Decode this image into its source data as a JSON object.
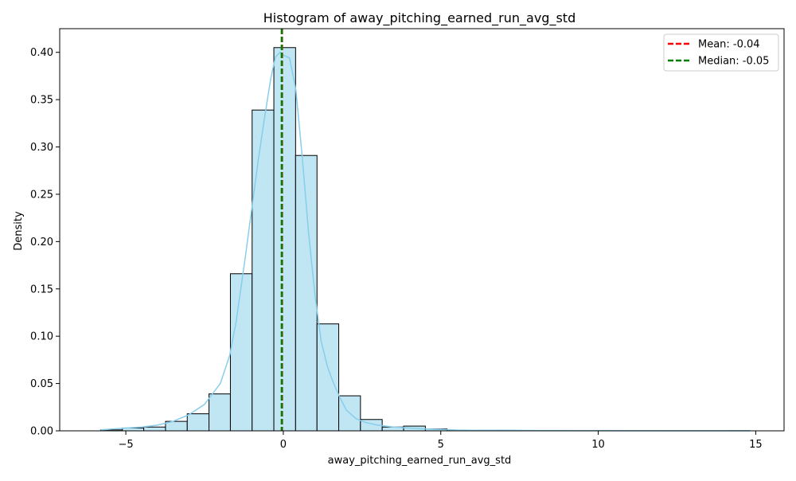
{
  "chart_data": {
    "type": "bar",
    "title": "Histogram of away_pitching_earned_run_avg_std",
    "xlabel": "away_pitching_earned_run_avg_std",
    "ylabel": "Density",
    "xlim": [
      -7.1,
      15.9
    ],
    "ylim": [
      0,
      0.425
    ],
    "x_ticks": [
      {
        "value": -5,
        "label": "−5"
      },
      {
        "value": 0,
        "label": "0"
      },
      {
        "value": 5,
        "label": "5"
      },
      {
        "value": 10,
        "label": "10"
      },
      {
        "value": 15,
        "label": "15"
      }
    ],
    "y_ticks": [
      {
        "value": 0.0,
        "label": "0.00"
      },
      {
        "value": 0.05,
        "label": "0.05"
      },
      {
        "value": 0.1,
        "label": "0.10"
      },
      {
        "value": 0.15,
        "label": "0.15"
      },
      {
        "value": 0.2,
        "label": "0.20"
      },
      {
        "value": 0.25,
        "label": "0.25"
      },
      {
        "value": 0.3,
        "label": "0.30"
      },
      {
        "value": 0.35,
        "label": "0.35"
      },
      {
        "value": 0.4,
        "label": "0.40"
      }
    ],
    "grid": false,
    "bin_edges": [
      -5.8,
      -5.11,
      -4.43,
      -3.74,
      -3.05,
      -2.36,
      -1.68,
      -0.99,
      -0.3,
      0.39,
      1.07,
      1.76,
      2.45,
      3.14,
      3.82,
      4.51,
      5.2,
      5.88,
      6.57,
      7.26,
      7.95,
      8.63,
      9.32,
      10.01,
      10.7,
      11.38,
      12.07,
      12.76,
      13.45,
      14.13,
      14.82
    ],
    "densities": [
      0.001,
      0.003,
      0.004,
      0.01,
      0.018,
      0.039,
      0.166,
      0.339,
      0.405,
      0.291,
      0.113,
      0.037,
      0.012,
      0.004,
      0.005,
      0.002,
      0.0003,
      0.0002,
      0.0001,
      0.0001,
      0.0,
      0.0,
      0.0,
      0.0001,
      0.0,
      0.0,
      0.0,
      0.0,
      0.0,
      0.0001
    ],
    "kde": {
      "x": [
        -5.8,
        -5.0,
        -4.5,
        -4.0,
        -3.5,
        -3.0,
        -2.5,
        -2.0,
        -1.7,
        -1.5,
        -1.2,
        -1.0,
        -0.8,
        -0.6,
        -0.4,
        -0.25,
        -0.1,
        0.0,
        0.2,
        0.4,
        0.6,
        0.8,
        1.0,
        1.2,
        1.4,
        1.6,
        1.8,
        2.0,
        2.3,
        2.6,
        3.0,
        3.5,
        4.0,
        4.5,
        5.0,
        5.5,
        6.0,
        7.0,
        8.0,
        10.0,
        12.0,
        14.82
      ],
      "y": [
        0.001,
        0.003,
        0.004,
        0.006,
        0.01,
        0.017,
        0.028,
        0.05,
        0.08,
        0.115,
        0.185,
        0.235,
        0.285,
        0.33,
        0.372,
        0.395,
        0.4,
        0.397,
        0.394,
        0.36,
        0.29,
        0.21,
        0.145,
        0.095,
        0.068,
        0.05,
        0.035,
        0.022,
        0.013,
        0.009,
        0.006,
        0.004,
        0.003,
        0.002,
        0.0015,
        0.0008,
        0.0005,
        0.0006,
        0.0003,
        0.0002,
        0.0001,
        0.0001
      ]
    },
    "lines": [
      {
        "name": "Mean: -0.04",
        "value": -0.04,
        "color": "#ff0000",
        "style": "dashed"
      },
      {
        "name": "Median: -0.05",
        "value": -0.05,
        "color": "#008000",
        "style": "dashed"
      }
    ],
    "legend_position": "top-right",
    "colors": {
      "bar_fill": "#c0e5f3",
      "bar_edge": "#000000",
      "kde_line": "#87ceeb"
    }
  }
}
